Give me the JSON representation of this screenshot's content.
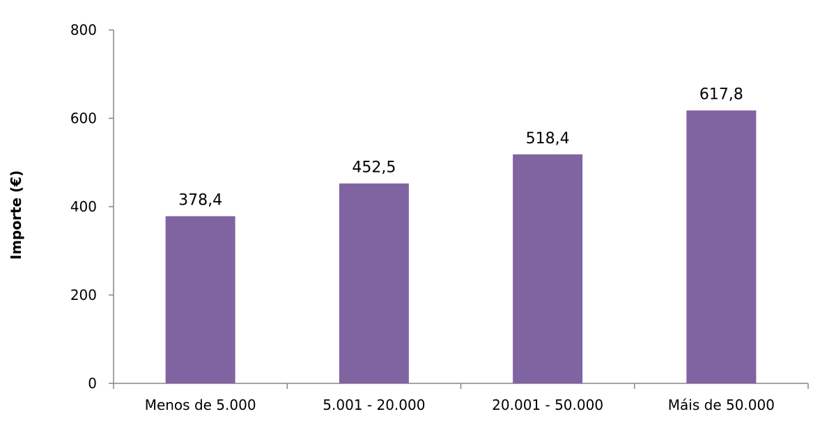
{
  "chart_data": {
    "type": "bar",
    "categories": [
      "Menos de 5.000",
      "5.001 - 20.000",
      "20.001 - 50.000",
      "Máis de 50.000"
    ],
    "values": [
      378.4,
      452.5,
      518.4,
      617.8
    ],
    "value_labels": [
      "378,4",
      "452,5",
      "518,4",
      "617,8"
    ],
    "ylabel": "Importe (€)",
    "xlabel": "",
    "title": "",
    "ylim": [
      0,
      800
    ],
    "yticks": [
      0,
      200,
      400,
      600,
      800
    ],
    "ytick_labels": [
      "0",
      "200",
      "400",
      "600",
      "800"
    ],
    "grid": false,
    "legend": "none",
    "bar_color": "#8064A2"
  }
}
